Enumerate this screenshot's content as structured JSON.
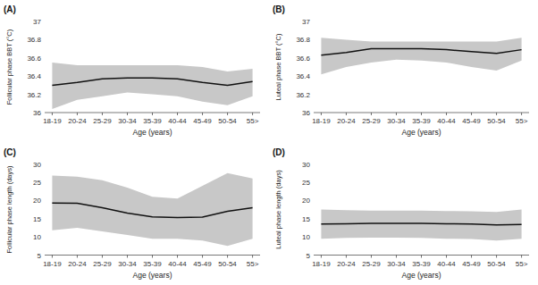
{
  "chart_data": [
    {
      "type": "line",
      "title": "(A)",
      "x_label": "Age (years)",
      "y_label": "Follicular phase BBT (°C)",
      "categories": [
        "18-19",
        "20-24",
        "25-29",
        "30-34",
        "35-39",
        "40-44",
        "45-49",
        "50-54",
        "55>"
      ],
      "series": [
        {
          "type": "area",
          "color": "#c8c8c8",
          "upper": [
            36.55,
            36.52,
            36.52,
            36.52,
            36.52,
            36.52,
            36.5,
            36.45,
            36.48
          ],
          "lower": [
            36.04,
            36.14,
            36.18,
            36.22,
            36.2,
            36.18,
            36.12,
            36.08,
            36.18
          ]
        },
        {
          "type": "line",
          "color": "#111111",
          "values": [
            36.3,
            36.33,
            36.37,
            36.38,
            36.38,
            36.37,
            36.33,
            36.3,
            36.34
          ]
        }
      ],
      "ylim": [
        36,
        37
      ],
      "yticks": [
        36,
        36.2,
        36.4,
        36.6,
        36.8,
        37
      ],
      "grid": false
    },
    {
      "type": "line",
      "title": "(B)",
      "x_label": "Age (years)",
      "y_label": "Luteal phase BBT (°C)",
      "categories": [
        "18-19",
        "20-24",
        "25-29",
        "30-34",
        "35-39",
        "40-44",
        "45-49",
        "50-54",
        "55>"
      ],
      "series": [
        {
          "type": "area",
          "color": "#c8c8c8",
          "upper": [
            36.82,
            36.8,
            36.78,
            36.78,
            36.78,
            36.78,
            36.78,
            36.78,
            36.82
          ],
          "lower": [
            36.42,
            36.5,
            36.55,
            36.58,
            36.57,
            36.55,
            36.5,
            36.46,
            36.57
          ]
        },
        {
          "type": "line",
          "color": "#111111",
          "values": [
            36.63,
            36.66,
            36.7,
            36.7,
            36.7,
            36.69,
            36.67,
            36.65,
            36.69
          ]
        }
      ],
      "ylim": [
        36,
        37
      ],
      "yticks": [
        36,
        36.2,
        36.4,
        36.6,
        36.8,
        37
      ],
      "grid": false
    },
    {
      "type": "line",
      "title": "(C)",
      "x_label": "Age (years)",
      "y_label": "Follicular phase length (days)",
      "categories": [
        "18-19",
        "20-24",
        "25-29",
        "30-34",
        "35-39",
        "40-44",
        "45-49",
        "50-54",
        "55>"
      ],
      "series": [
        {
          "type": "area",
          "color": "#c8c8c8",
          "upper": [
            26.8,
            26.5,
            25.5,
            23.5,
            21.0,
            20.5,
            24.0,
            27.5,
            26.0
          ],
          "lower": [
            11.8,
            12.5,
            11.5,
            10.5,
            9.5,
            9.5,
            9.0,
            7.5,
            9.5
          ]
        },
        {
          "type": "line",
          "color": "#111111",
          "values": [
            19.3,
            19.2,
            18.0,
            16.5,
            15.5,
            15.3,
            15.4,
            17.0,
            18.0
          ]
        }
      ],
      "ylim": [
        5,
        30
      ],
      "yticks": [
        5,
        10,
        15,
        20,
        25,
        30
      ],
      "grid": false
    },
    {
      "type": "line",
      "title": "(D)",
      "x_label": "Age (years)",
      "y_label": "Luteal phase length (days)",
      "categories": [
        "18-19",
        "20-24",
        "25-29",
        "30-34",
        "35-39",
        "40-44",
        "45-49",
        "50-54",
        "55>"
      ],
      "series": [
        {
          "type": "area",
          "color": "#c8c8c8",
          "upper": [
            17.5,
            17.3,
            17.2,
            17.2,
            17.2,
            17.1,
            17.0,
            16.8,
            17.5
          ],
          "lower": [
            9.5,
            9.7,
            9.8,
            9.8,
            9.7,
            9.5,
            9.4,
            9.0,
            9.5
          ]
        },
        {
          "type": "line",
          "color": "#111111",
          "values": [
            13.5,
            13.6,
            13.7,
            13.7,
            13.7,
            13.6,
            13.5,
            13.3,
            13.4
          ]
        }
      ],
      "ylim": [
        5,
        30
      ],
      "yticks": [
        5,
        10,
        15,
        20,
        25,
        30
      ],
      "grid": false
    }
  ]
}
